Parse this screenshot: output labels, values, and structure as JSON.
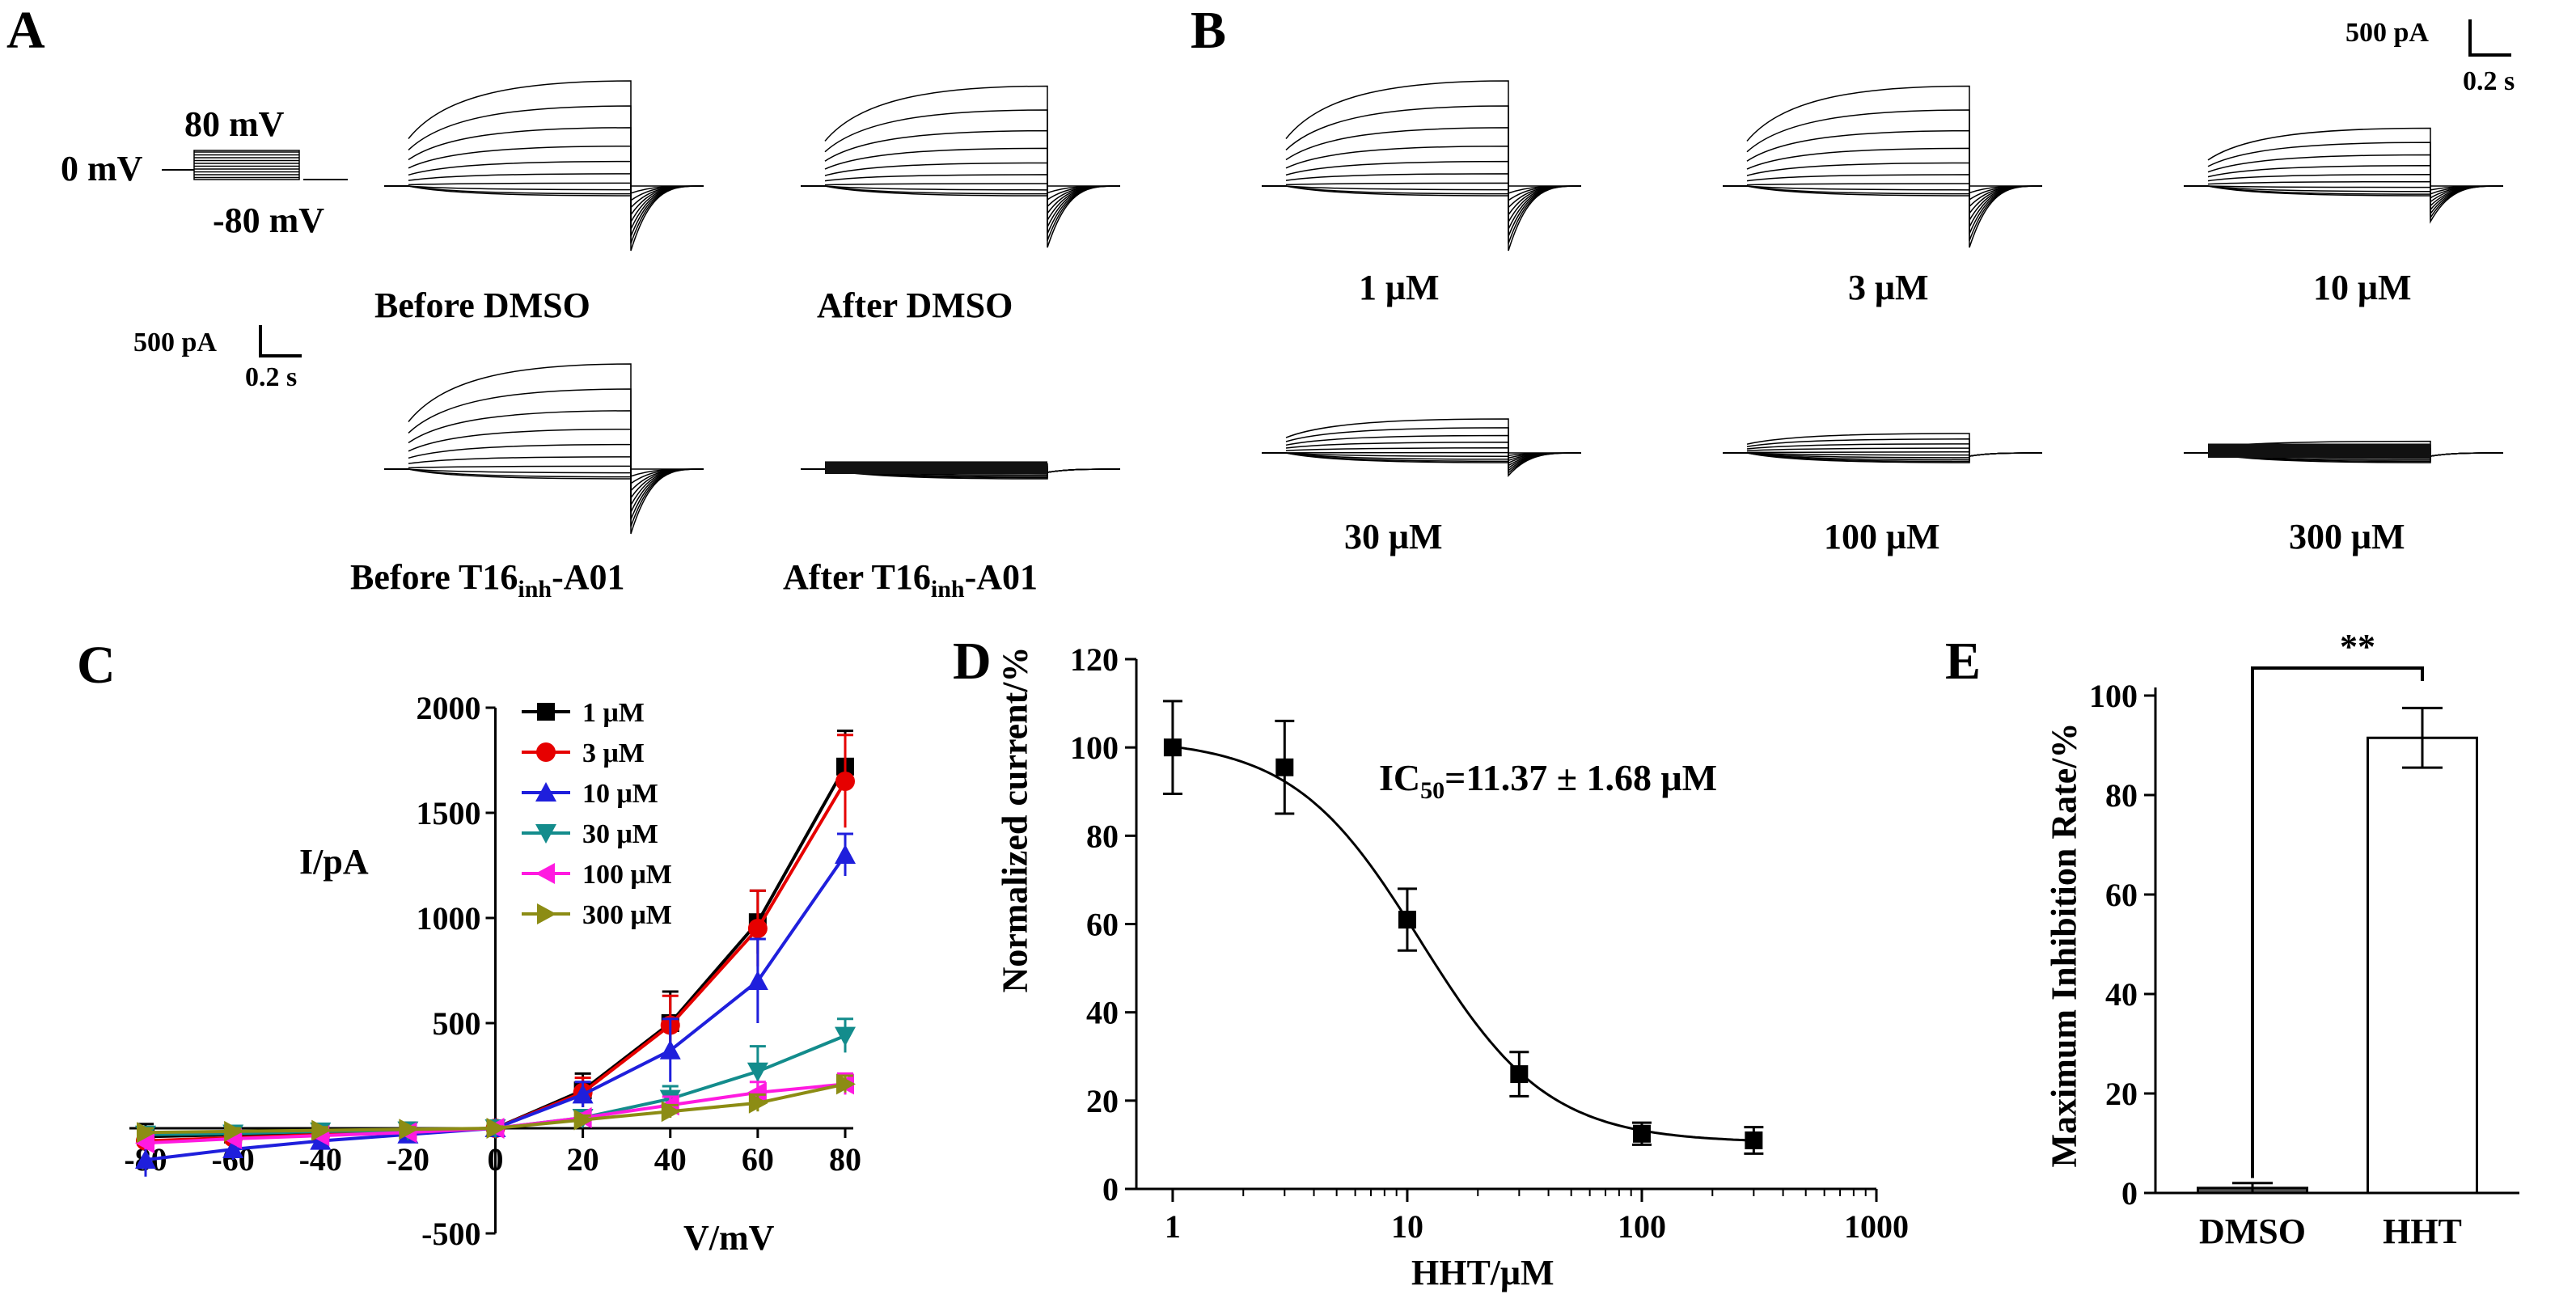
{
  "panelA": {
    "letter": "A",
    "protocol": {
      "top": "80 mV",
      "hold": "0 mV",
      "bottom": "-80 mV"
    },
    "scale": {
      "current": "500 pA",
      "time": "0.2 s"
    },
    "traces": [
      {
        "pre": "Before DMSO",
        "sub": "",
        "post": "",
        "amplitude": 1.0
      },
      {
        "pre": "After DMSO",
        "sub": "",
        "post": "",
        "amplitude": 0.95
      },
      {
        "pre": "Before T16",
        "sub": "inh",
        "post": "-A01",
        "amplitude": 1.0
      },
      {
        "pre": "After T16",
        "sub": "inh",
        "post": "-A01",
        "amplitude": 0.05
      }
    ]
  },
  "panelB": {
    "letter": "B",
    "scale": {
      "current": "500 pA",
      "time": "0.2 s"
    },
    "traces": [
      {
        "label": "1 μM",
        "amplitude": 1.0
      },
      {
        "label": "3 μM",
        "amplitude": 0.95
      },
      {
        "label": "10 μM",
        "amplitude": 0.55
      },
      {
        "label": "30 μM",
        "amplitude": 0.35
      },
      {
        "label": "100 μM",
        "amplitude": 0.2
      },
      {
        "label": "300 μM",
        "amplitude": 0.12
      }
    ]
  },
  "chart_data": [
    {
      "panel": "C",
      "type": "line",
      "xlabel": "V/mV",
      "ylabel": "I/pA",
      "xlim": [
        -80,
        80
      ],
      "ylim": [
        -500,
        2000
      ],
      "xticks": [
        "-80",
        "-60",
        "-40",
        "-20",
        "0",
        "20",
        "40",
        "60",
        "80"
      ],
      "yticks": [
        "-500",
        "0",
        "500",
        "1000",
        "1500",
        "2000"
      ],
      "x": [
        -80,
        -60,
        -40,
        -20,
        0,
        20,
        40,
        60,
        80
      ],
      "series": [
        {
          "name": "1 μM",
          "color": "#000000",
          "marker": "square",
          "values": [
            -40,
            -30,
            -20,
            -10,
            0,
            180,
            500,
            980,
            1720
          ],
          "err": [
            60,
            40,
            30,
            25,
            10,
            80,
            150,
            150,
            170
          ]
        },
        {
          "name": "3 μM",
          "color": "#e60000",
          "marker": "circle",
          "values": [
            -60,
            -45,
            -30,
            -15,
            0,
            170,
            490,
            950,
            1650
          ],
          "err": [
            50,
            40,
            30,
            25,
            10,
            70,
            140,
            180,
            220
          ]
        },
        {
          "name": "10 μM",
          "color": "#1f1fdc",
          "marker": "triangle-up",
          "values": [
            -150,
            -100,
            -60,
            -30,
            0,
            160,
            370,
            700,
            1300
          ],
          "err": [
            80,
            50,
            40,
            25,
            10,
            60,
            150,
            200,
            100
          ]
        },
        {
          "name": "30 μM",
          "color": "#138c8c",
          "marker": "triangle-down",
          "values": [
            -30,
            -25,
            -15,
            -10,
            0,
            50,
            140,
            270,
            440
          ],
          "err": [
            30,
            25,
            20,
            15,
            8,
            30,
            60,
            120,
            80
          ]
        },
        {
          "name": "100 μM",
          "color": "#ff1ae0",
          "marker": "triangle-left",
          "values": [
            -70,
            -50,
            -35,
            -20,
            0,
            50,
            110,
            170,
            210
          ],
          "err": [
            30,
            25,
            20,
            15,
            8,
            20,
            40,
            50,
            50
          ]
        },
        {
          "name": "300 μM",
          "color": "#8c8c14",
          "marker": "triangle-right",
          "values": [
            -20,
            -15,
            -10,
            -5,
            0,
            40,
            80,
            120,
            210
          ],
          "err": [
            20,
            15,
            15,
            10,
            8,
            20,
            30,
            40,
            40
          ]
        }
      ]
    },
    {
      "panel": "D",
      "type": "scatter",
      "xlabel": "HHT/μM",
      "ylabel": "Normalized  current/%",
      "xscale": "log",
      "xlim": [
        0.7,
        1000
      ],
      "ylim": [
        0,
        120
      ],
      "xticks": [
        "1",
        "10",
        "100",
        "1000"
      ],
      "yticks": [
        "0",
        "20",
        "40",
        "60",
        "80",
        "100",
        "120"
      ],
      "annotation": {
        "pre": "IC",
        "sub": "50",
        "post": "=11.37 ± 1.68 μM"
      },
      "x": [
        1,
        3,
        10,
        30,
        100,
        300
      ],
      "values": [
        100,
        95.5,
        61,
        26,
        12.5,
        11
      ],
      "err": [
        10.5,
        10.5,
        7,
        5,
        2.5,
        3
      ],
      "fit": {
        "bottom": 10.5,
        "top": 102,
        "ic50": 11.37,
        "hill": 1.6
      }
    },
    {
      "panel": "E",
      "type": "bar",
      "xlabel": "",
      "ylabel": "Maximum  Inhibition  Rate/%",
      "ylim": [
        0,
        100
      ],
      "yticks": [
        "0",
        "20",
        "40",
        "60",
        "80",
        "100"
      ],
      "categories": [
        "DMSO",
        "HHT"
      ],
      "values": [
        1,
        91.5
      ],
      "err": [
        1,
        6
      ],
      "significance": "**"
    }
  ]
}
